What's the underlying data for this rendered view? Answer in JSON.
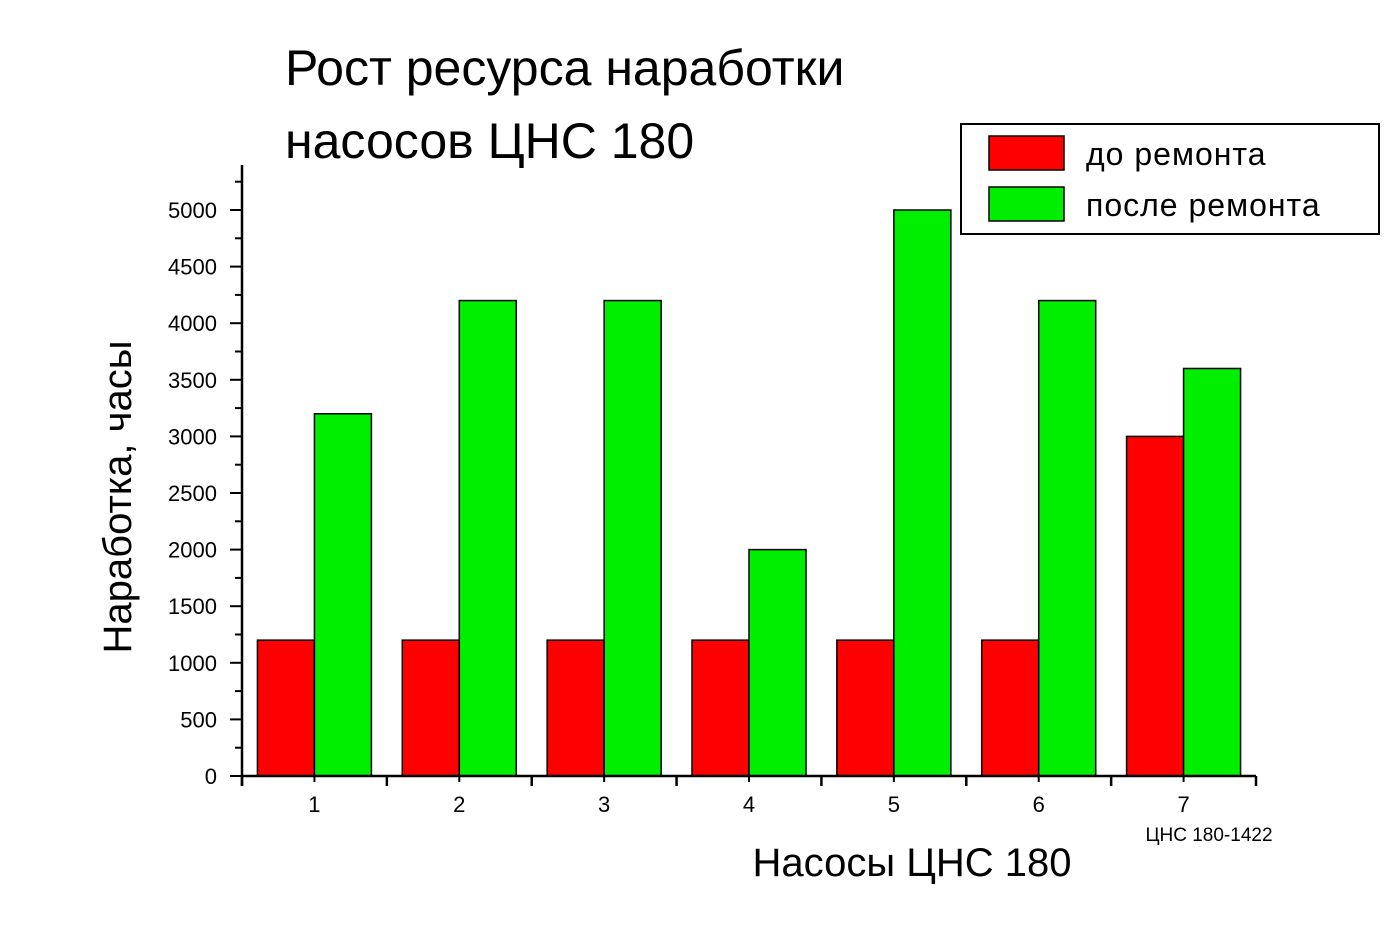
{
  "chart_data": {
    "type": "bar",
    "title_lines": [
      "Рост ресурса наработки",
      "насосов ЦНС 180"
    ],
    "xlabel": "Насосы ЦНС 180",
    "ylabel": "Наработка, часы",
    "categories": [
      "1",
      "2",
      "3",
      "4",
      "5",
      "6",
      "7"
    ],
    "category_note": "ЦНС 180-1422",
    "ylim": [
      0,
      5400
    ],
    "yticks": [
      0,
      500,
      1000,
      1500,
      2000,
      2500,
      3000,
      3500,
      4000,
      4500,
      5000
    ],
    "series": [
      {
        "name": "до ремонта",
        "color": "#ff0000",
        "values": [
          1200,
          1200,
          1200,
          1200,
          1200,
          1200,
          3000
        ]
      },
      {
        "name": "после ремонта",
        "color": "#00ee00",
        "values": [
          3200,
          4200,
          4200,
          2000,
          5000,
          4200,
          3600
        ]
      }
    ],
    "grid": false,
    "legend_position": "top-right"
  }
}
